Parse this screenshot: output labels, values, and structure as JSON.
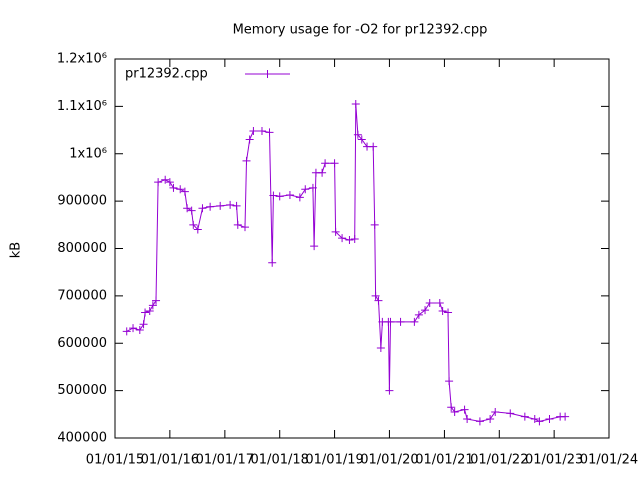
{
  "chart_data": {
    "type": "line",
    "title": "Memory usage for -O2 for pr12392.cpp",
    "y_label": "kB",
    "legend": "top-left",
    "x": [
      "2015-03-20",
      "2015-05-01",
      "2015-06-15",
      "2015-07-10",
      "2015-07-20",
      "2015-08-20",
      "2015-09-10",
      "2015-10-01",
      "2015-10-15",
      "2015-12-01",
      "2016-01-01",
      "2016-01-25",
      "2016-03-10",
      "2016-04-10",
      "2016-04-25",
      "2016-05-25",
      "2016-06-05",
      "2016-07-05",
      "2016-08-05",
      "2016-09-25",
      "2016-12-01",
      "2017-02-05",
      "2017-03-20",
      "2017-03-28",
      "2017-05-15",
      "2017-05-25",
      "2017-06-15",
      "2017-07-10",
      "2017-09-05",
      "2017-10-25",
      "2017-11-12",
      "2017-11-20",
      "2018-01-01",
      "2018-03-10",
      "2018-05-15",
      "2018-06-20",
      "2018-08-10",
      "2018-08-18",
      "2018-08-30",
      "2018-10-10",
      "2018-10-30",
      "2019-01-01",
      "2019-01-08",
      "2019-02-20",
      "2019-04-10",
      "2019-05-15",
      "2019-05-22",
      "2019-06-05",
      "2019-07-01",
      "2019-08-05",
      "2019-09-15",
      "2019-09-25",
      "2019-10-01",
      "2019-10-20",
      "2019-11-05",
      "2019-11-15",
      "2019-12-25",
      "2020-01-01",
      "2020-01-08",
      "2020-03-15",
      "2020-06-15",
      "2020-07-15",
      "2020-08-25",
      "2020-09-25",
      "2020-12-01",
      "2020-12-20",
      "2021-01-25",
      "2021-02-01",
      "2021-02-15",
      "2021-03-10",
      "2021-05-15",
      "2021-06-01",
      "2021-08-25",
      "2021-11-01",
      "2021-12-05",
      "2022-03-15",
      "2022-06-20",
      "2022-08-25",
      "2022-09-25",
      "2022-12-01",
      "2023-02-10",
      "2023-03-15"
    ],
    "series": [
      {
        "name": "pr12392.cpp",
        "color": "#9400d3",
        "values": [
          625000,
          632000,
          628000,
          640000,
          665000,
          668000,
          680000,
          690000,
          940000,
          945000,
          940000,
          928000,
          925000,
          920000,
          885000,
          880000,
          850000,
          840000,
          885000,
          888000,
          890000,
          892000,
          890000,
          850000,
          845000,
          985000,
          1030000,
          1048000,
          1048000,
          1045000,
          770000,
          912000,
          910000,
          913000,
          908000,
          925000,
          928000,
          805000,
          960000,
          960000,
          980000,
          980000,
          835000,
          822000,
          818000,
          820000,
          1105000,
          1040000,
          1030000,
          1015000,
          1015000,
          850000,
          700000,
          690000,
          590000,
          645000,
          645000,
          500000,
          645000,
          645000,
          645000,
          660000,
          670000,
          685000,
          685000,
          668000,
          665000,
          520000,
          465000,
          455000,
          460000,
          440000,
          435000,
          440000,
          455000,
          452000,
          445000,
          440000,
          435000,
          440000,
          445000,
          445000
        ]
      }
    ],
    "xlim": [
      "2015-01-01",
      "2024-01-01"
    ],
    "xticks": [
      {
        "value": "2015-01-01",
        "label": "01/01/15"
      },
      {
        "value": "2016-01-01",
        "label": "01/01/16"
      },
      {
        "value": "2017-01-01",
        "label": "01/01/17"
      },
      {
        "value": "2018-01-01",
        "label": "01/01/18"
      },
      {
        "value": "2019-01-01",
        "label": "01/01/19"
      },
      {
        "value": "2020-01-01",
        "label": "01/01/20"
      },
      {
        "value": "2021-01-01",
        "label": "01/01/21"
      },
      {
        "value": "2022-01-01",
        "label": "01/01/22"
      },
      {
        "value": "2023-01-01",
        "label": "01/01/23"
      },
      {
        "value": "2024-01-01",
        "label": "01/01/24"
      }
    ],
    "ylim": [
      400000,
      1200000
    ],
    "yticks": [
      400000,
      500000,
      600000,
      700000,
      800000,
      900000,
      {
        "value": 1000000,
        "label": "1x10⁶"
      },
      {
        "value": 1100000,
        "label": "1.1x10⁶"
      },
      {
        "value": 1200000,
        "label": "1.2x10⁶"
      }
    ]
  }
}
